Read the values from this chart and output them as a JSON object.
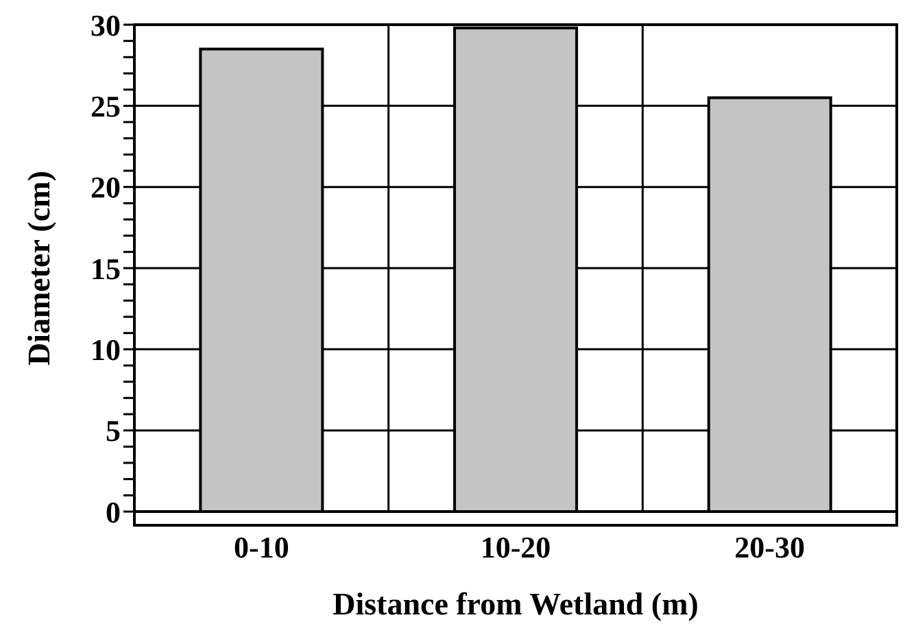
{
  "chart_data": {
    "type": "bar",
    "xlabel": "Distance from Wetland (m)",
    "ylabel": "Diameter (cm)",
    "categories": [
      "0-10",
      "10-20",
      "20-30"
    ],
    "values": [
      28.5,
      29.8,
      25.5
    ],
    "color": "#c4c4c4",
    "ylim": [
      0,
      30
    ],
    "yticks": [
      0,
      {
        "value": 1,
        "label": null
      },
      {
        "value": 2,
        "label": null
      },
      {
        "value": 3,
        "label": null
      },
      {
        "value": 4,
        "label": null
      },
      5,
      {
        "value": 6,
        "label": null
      },
      {
        "value": 7,
        "label": null
      },
      {
        "value": 8,
        "label": null
      },
      {
        "value": 9,
        "label": null
      },
      10,
      {
        "value": 11,
        "label": null
      },
      {
        "value": 12,
        "label": null
      },
      {
        "value": 13,
        "label": null
      },
      {
        "value": 14,
        "label": null
      },
      15,
      {
        "value": 16,
        "label": null
      },
      {
        "value": 17,
        "label": null
      },
      {
        "value": 18,
        "label": null
      },
      {
        "value": 19,
        "label": null
      },
      20,
      {
        "value": 21,
        "label": null
      },
      {
        "value": 22,
        "label": null
      },
      {
        "value": 23,
        "label": null
      },
      {
        "value": 24,
        "label": null
      },
      25,
      {
        "value": 26,
        "label": null
      },
      {
        "value": 27,
        "label": null
      },
      {
        "value": 28,
        "label": null
      },
      {
        "value": 29,
        "label": null
      },
      30
    ],
    "grid": true
  }
}
